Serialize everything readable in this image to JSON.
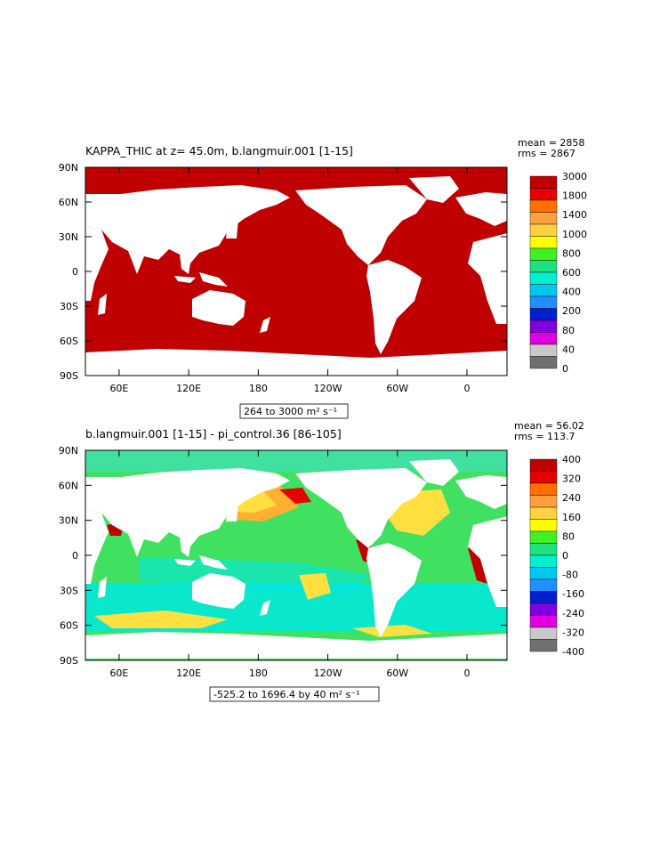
{
  "panels": [
    {
      "title": "KAPPA_THIC at z=  45.0m, b.langmuir.001 [1-15]",
      "mean": "mean = 2858",
      "rms": "rms = 2867",
      "range_label": "264 to 3000 m² s⁻¹",
      "lat_labels": [
        "90N",
        "60N",
        "30N",
        "0",
        "30S",
        "60S",
        "90S"
      ],
      "lon_labels": [
        "60E",
        "120E",
        "180",
        "120W",
        "60W",
        "0"
      ],
      "colorbar": {
        "labels": [
          "3000",
          "1800",
          "1400",
          "1000",
          "800",
          "600",
          "400",
          "200",
          "80",
          "40",
          "0"
        ],
        "colors": [
          "#c00000",
          "#e60000",
          "#ff7000",
          "#ffa040",
          "#ffd040",
          "#ffff00",
          "#40f020",
          "#20e080",
          "#00f0d0",
          "#00c8f0",
          "#2090ff",
          "#0020d0",
          "#8000e0",
          "#e000e0",
          "#c8c8c8",
          "#707070"
        ]
      }
    },
    {
      "title": "b.langmuir.001 [1-15] - pi_control.36 [86-105]",
      "mean": "mean = 56.02",
      "rms": "rms = 113.7",
      "range_label": "-525.2 to 1696.4 by 40 m² s⁻¹",
      "lat_labels": [
        "90N",
        "60N",
        "30N",
        "0",
        "30S",
        "60S",
        "90S"
      ],
      "lon_labels": [
        "60E",
        "120E",
        "180",
        "120W",
        "60W",
        "0"
      ],
      "colorbar": {
        "labels": [
          "400",
          "320",
          "240",
          "160",
          "80",
          "0",
          "-80",
          "-160",
          "-240",
          "-320",
          "-400"
        ],
        "colors": [
          "#c00000",
          "#e60000",
          "#ff7000",
          "#ffa040",
          "#ffd040",
          "#ffff00",
          "#40f020",
          "#20e080",
          "#00f0d0",
          "#00c8f0",
          "#2090ff",
          "#0020d0",
          "#8000e0",
          "#e000e0",
          "#c8c8c8",
          "#707070"
        ]
      }
    }
  ],
  "map_colors": {
    "ocean_top": "#c00000",
    "land": "#ffffff",
    "ocean_bottom_base": "#40e060",
    "anomaly_cyan": "#00e8e0",
    "anomaly_yellow": "#ffe040",
    "anomaly_red": "#c00000",
    "anomaly_white": "#ffffff"
  }
}
